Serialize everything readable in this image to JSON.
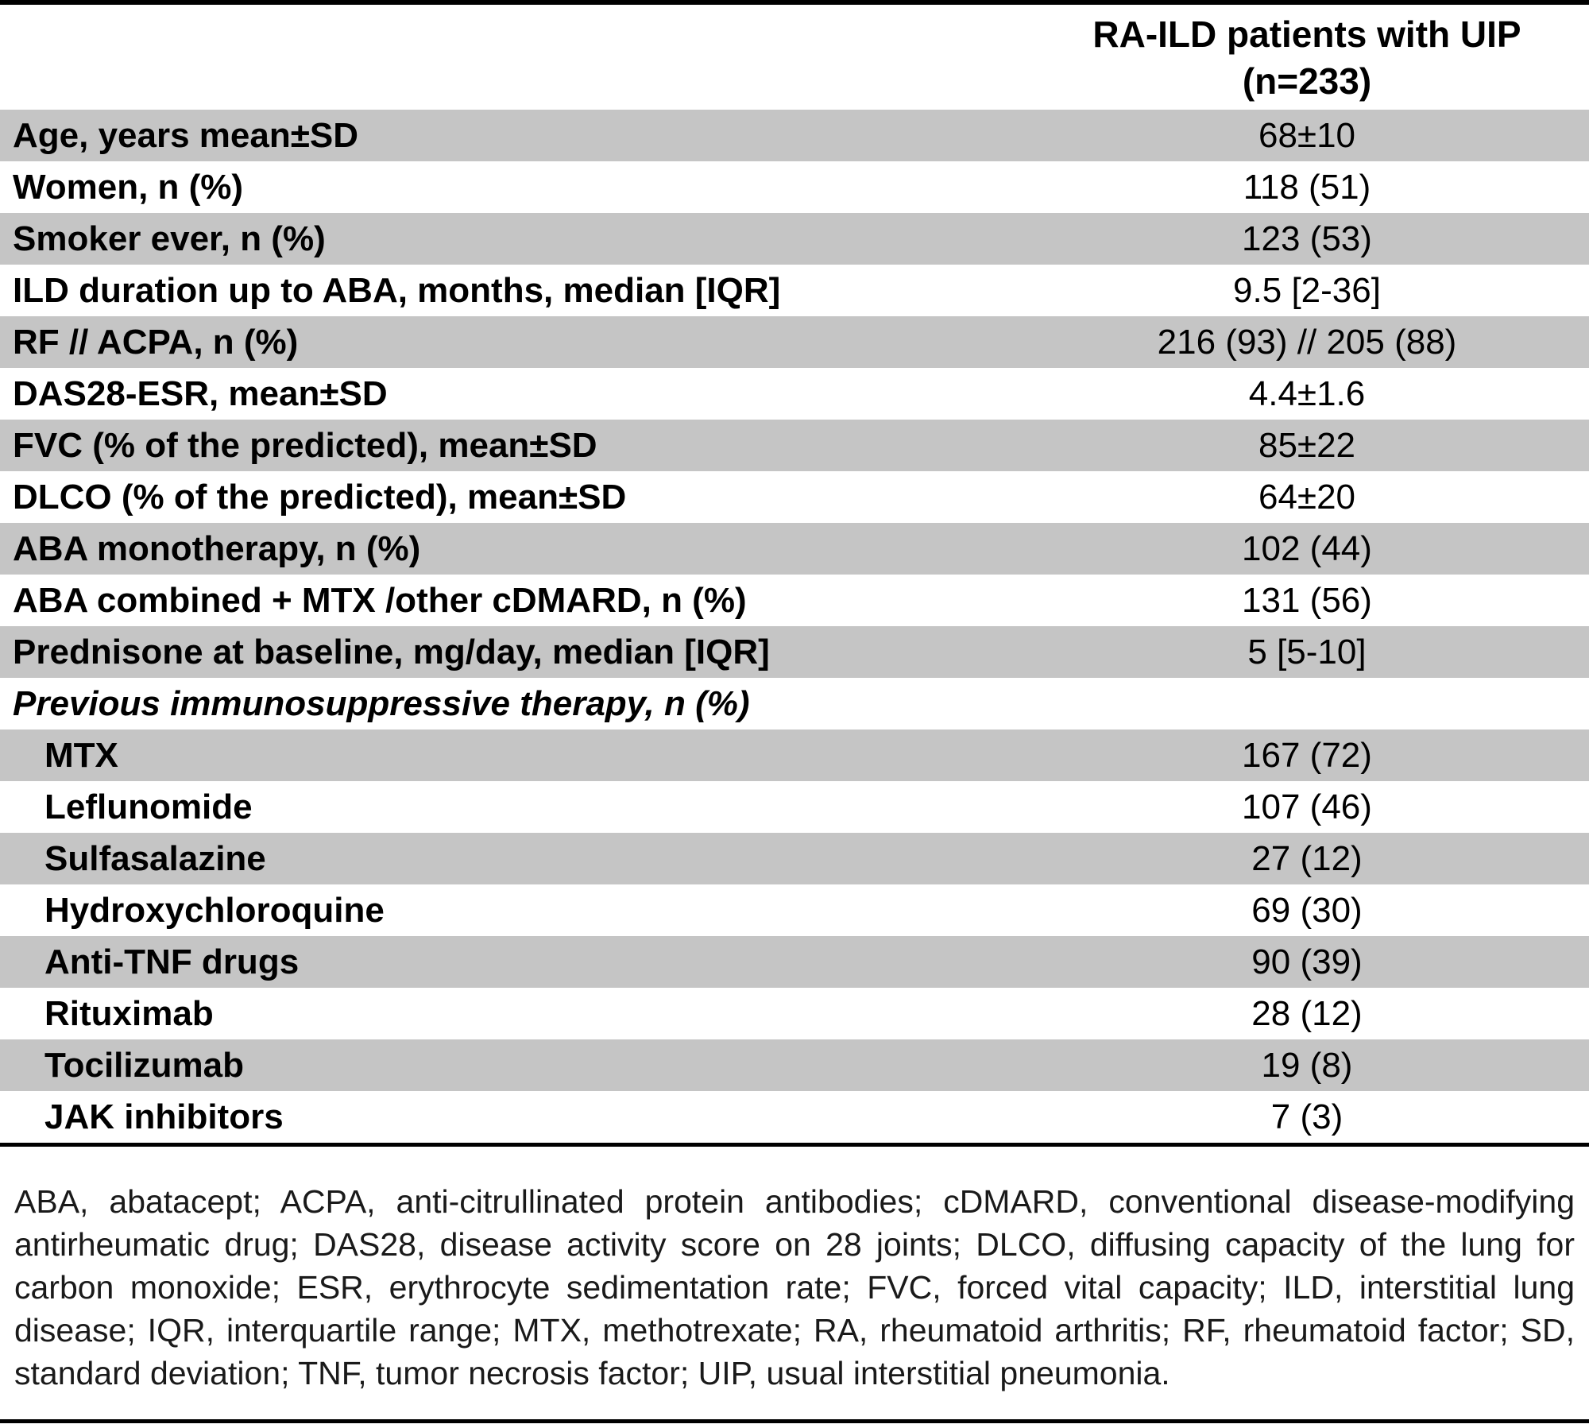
{
  "colors": {
    "row_shade": "#c5c5c5"
  },
  "header": {
    "col_label": "RA-ILD patients with UIP\n(n=233)"
  },
  "rows": [
    {
      "label": "Age, years mean±SD",
      "value": "68±10"
    },
    {
      "label": "Women, n (%)",
      "value": "118 (51)"
    },
    {
      "label": "Smoker ever, n (%)",
      "value": "123 (53)"
    },
    {
      "label": "ILD duration up to ABA, months, median [IQR]",
      "value": "9.5 [2-36]"
    },
    {
      "label": "RF // ACPA, n (%)",
      "value": "216 (93) // 205 (88)"
    },
    {
      "label": "DAS28-ESR, mean±SD",
      "value": "4.4±1.6"
    },
    {
      "label": "FVC (% of the predicted), mean±SD",
      "value": "85±22"
    },
    {
      "label": "DLCO (% of the predicted), mean±SD",
      "value": "64±20"
    },
    {
      "label": "ABA monotherapy, n (%)",
      "value": "102 (44)"
    },
    {
      "label": "ABA combined + MTX /other cDMARD, n (%)",
      "value": "131 (56)"
    },
    {
      "label": "Prednisone at baseline, mg/day, median [IQR]",
      "value": "5 [5-10]"
    },
    {
      "label": "Previous immunosuppressive therapy, n (%)",
      "value": ""
    },
    {
      "label": "MTX",
      "value": "167 (72)"
    },
    {
      "label": "Leflunomide",
      "value": "107 (46)"
    },
    {
      "label": "Sulfasalazine",
      "value": "27 (12)"
    },
    {
      "label": "Hydroxychloroquine",
      "value": "69 (30)"
    },
    {
      "label": "Anti-TNF drugs",
      "value": "90 (39)"
    },
    {
      "label": "Rituximab",
      "value": "28 (12)"
    },
    {
      "label": "Tocilizumab",
      "value": "19 (8)"
    },
    {
      "label": "JAK inhibitors",
      "value": "7 (3)"
    }
  ],
  "footnote": "ABA, abatacept; ACPA, anti-citrullinated protein antibodies; cDMARD, conventional disease-modifying antirheumatic drug; DAS28, disease activity score on 28 joints; DLCO, diffusing capacity of the lung for carbon monoxide; ESR, erythrocyte sedimentation rate; FVC, forced vital capacity; ILD, interstitial lung disease; IQR, interquartile range; MTX, methotrexate; RA, rheumatoid arthritis; RF, rheumatoid factor; SD, standard deviation; TNF, tumor necrosis factor; UIP, usual interstitial pneumonia."
}
